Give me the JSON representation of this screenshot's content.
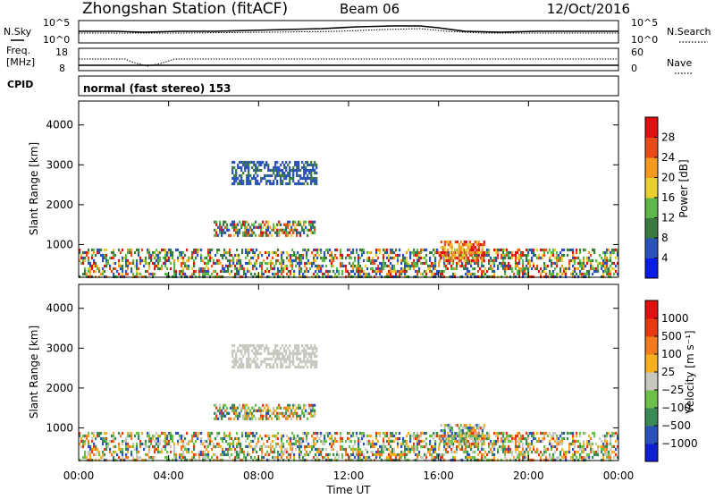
{
  "header": {
    "station": "Zhongshan Station (fitACF)",
    "beam": "Beam 06",
    "date": "12/Oct/2016"
  },
  "noise_panel": {
    "left_label": "N.Sky",
    "right_label": "N.Search",
    "left_ticks": [
      "10^5",
      "10^0"
    ],
    "right_ticks": [
      "10^5",
      "10^0"
    ]
  },
  "freq_panel": {
    "left_label_1": "Freq.",
    "left_label_2": "[MHz]",
    "right_label": "Nave",
    "left_ticks": [
      "18",
      "8"
    ],
    "right_ticks": [
      "60",
      "0"
    ]
  },
  "cpid": {
    "label": "CPID",
    "value": "normal (fast stereo) 153"
  },
  "chart_data": [
    {
      "type": "heatmap",
      "name": "power",
      "ylabel": "Slant Range [km]",
      "xlabel": "Time UT",
      "x_ticks": [
        "00:00",
        "04:00",
        "08:00",
        "12:00",
        "16:00",
        "20:00",
        "00:00"
      ],
      "y_ticks": [
        "1000",
        "2000",
        "3000",
        "4000"
      ],
      "xlim": [
        0,
        24
      ],
      "ylim": [
        180,
        4600
      ],
      "colorbar": {
        "label": "Power [dB]",
        "ticks": [
          "4",
          "8",
          "12",
          "16",
          "20",
          "24",
          "28"
        ],
        "colors": [
          "#0a1de8",
          "#2a52b8",
          "#3a7a3e",
          "#5cb84a",
          "#e8d030",
          "#f49a20",
          "#e84a18",
          "#e01010"
        ]
      },
      "scatter_regions": [
        {
          "x": [
            0.0,
            24.0
          ],
          "y": [
            200,
            900
          ],
          "level": "mixed"
        },
        {
          "x": [
            6.0,
            10.5
          ],
          "y": [
            1250,
            1600
          ],
          "level": "mixed"
        },
        {
          "x": [
            6.8,
            10.6
          ],
          "y": [
            2550,
            3100
          ],
          "level": "low"
        },
        {
          "x": [
            16.0,
            18.0
          ],
          "y": [
            600,
            1100
          ],
          "level": "high"
        }
      ]
    },
    {
      "type": "heatmap",
      "name": "velocity",
      "ylabel": "Slant Range [km]",
      "xlabel": "Time UT",
      "x_ticks": [
        "00:00",
        "04:00",
        "08:00",
        "12:00",
        "16:00",
        "20:00",
        "00:00"
      ],
      "y_ticks": [
        "1000",
        "2000",
        "3000",
        "4000"
      ],
      "xlim": [
        0,
        24
      ],
      "ylim": [
        180,
        4600
      ],
      "colorbar": {
        "label": "Velocity [m s⁻¹]",
        "ticks": [
          "1000",
          "500",
          "100",
          "25",
          "−25",
          "−100",
          "−500",
          "−1000"
        ],
        "colors": [
          "#1020d0",
          "#2a52b8",
          "#3a8a58",
          "#6cc04a",
          "#c8c8c0",
          "#f4b020",
          "#f47a20",
          "#e83a10",
          "#e01010"
        ]
      }
    }
  ]
}
